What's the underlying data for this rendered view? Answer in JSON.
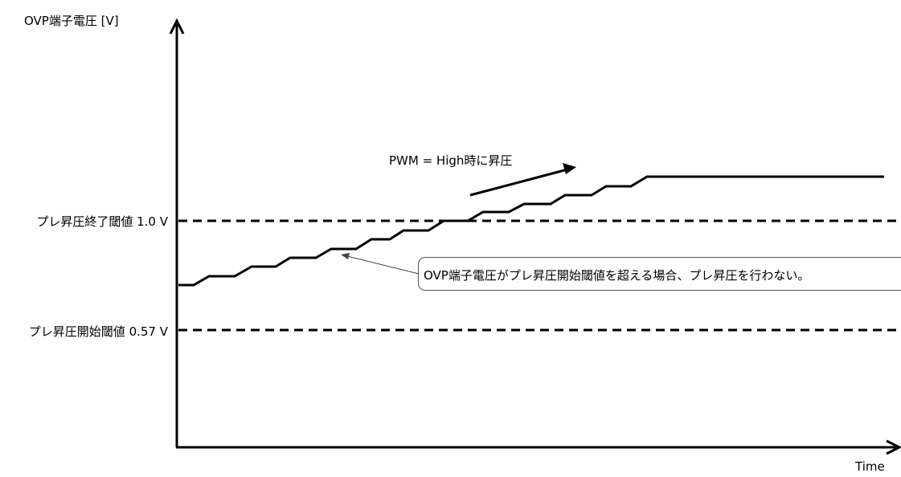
{
  "diagram": {
    "y_axis_label": "OVP端子電圧 [V]",
    "x_axis_label": "Time",
    "thresholds": [
      {
        "label": "プレ昇圧終了閾値 1.0 V",
        "value": 1.0,
        "style": "dashed"
      },
      {
        "label": "プレ昇圧開始閾値 0.57 V",
        "value": 0.57,
        "style": "dashed"
      }
    ],
    "annotations": {
      "pwm_note": "PWM = High時に昇圧",
      "callout": "OVP端子電圧がプレ昇圧開始閾値を超える場合、プレ昇圧を行わない。"
    },
    "colors": {
      "line": "#000000",
      "callout_border": "#555555",
      "background": "#ffffff"
    }
  }
}
